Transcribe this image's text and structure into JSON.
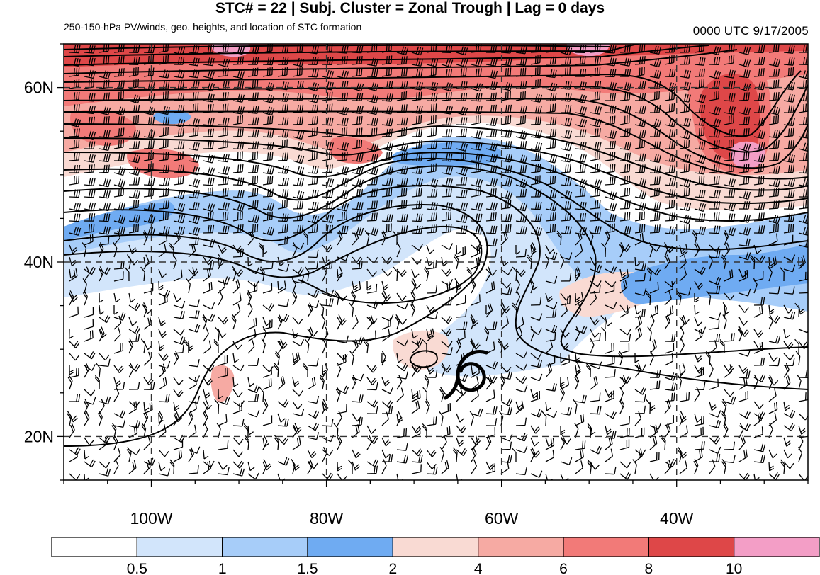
{
  "figure": {
    "title": "STC# = 22 | Subj. Cluster = Zonal Trough | Lag = 0 days",
    "subtitle": "250-150-hPa PV/winds, geo. heights, and location of STC formation",
    "datestamp": "0000 UTC  9/17/2005"
  },
  "map": {
    "lon_range": [
      -110,
      -25
    ],
    "lat_range": [
      15,
      65
    ],
    "lon_ticks": [
      {
        "value": -100,
        "label": "100W"
      },
      {
        "value": -80,
        "label": "80W"
      },
      {
        "value": -60,
        "label": "60W"
      },
      {
        "value": -40,
        "label": "40W"
      }
    ],
    "lat_ticks": [
      {
        "value": 20,
        "label": "20N"
      },
      {
        "value": 40,
        "label": "40N"
      },
      {
        "value": 60,
        "label": "60N"
      }
    ],
    "gridlines": "dashed",
    "storm_symbol": "tropical-storm-symbol",
    "storm_location": {
      "lon": -64,
      "lat": 27.5
    }
  },
  "colorbar": {
    "levels": [
      "0.5",
      "1",
      "1.5",
      "2",
      "4",
      "6",
      "8",
      "10"
    ],
    "colors": [
      "#ffffff",
      "#d2e5fb",
      "#a7cdf9",
      "#6fabf2",
      "#f9dad3",
      "#f6aaa3",
      "#f27a78",
      "#de4748",
      "#f39ec6"
    ]
  },
  "legend": {
    "legend_label": ""
  }
}
